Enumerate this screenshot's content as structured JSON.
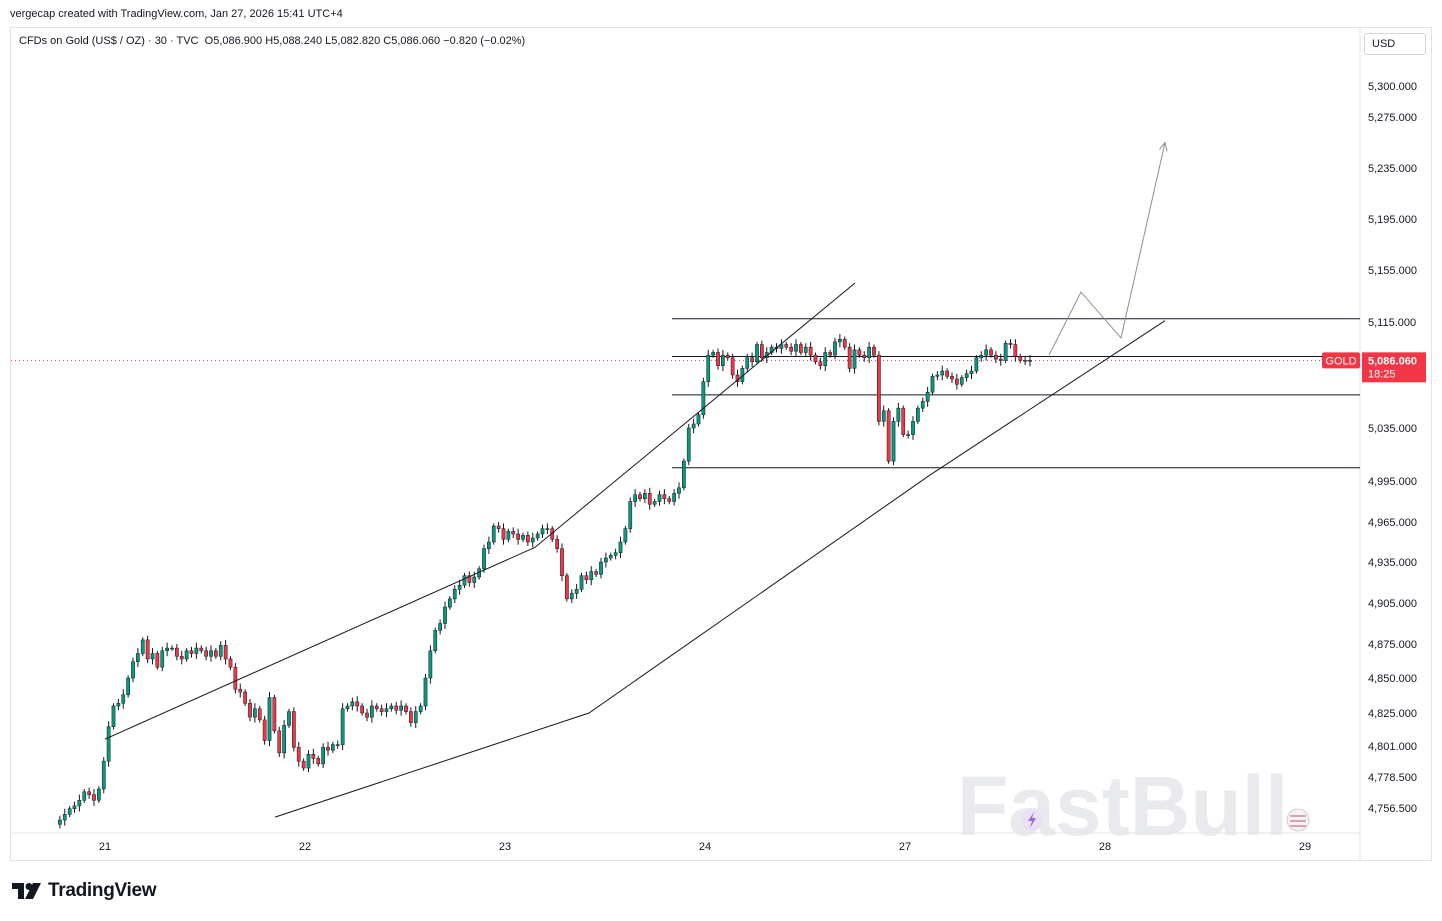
{
  "header": {
    "creator": "vergecap created with TradingView.com, Jan 27, 2026 15:41 UTC+4"
  },
  "legend": {
    "instrument": "CFDs on Gold (US$ / OZ) · 30 · TVC",
    "open": "O5,086.900",
    "high": "H5,088.240",
    "low": "L5,082.820",
    "close": "C5,086.060",
    "change": "−0.820 (−0.02%)"
  },
  "price_axis": {
    "currency": "USD"
  },
  "last_price": {
    "symbol": "GOLD",
    "price": "5,086.060",
    "countdown": "18:25"
  },
  "footer": {
    "brand": "TradingView"
  },
  "watermark": {
    "text": "FastBull"
  },
  "colors": {
    "up": "#089981",
    "down": "#f23645",
    "last_price": "#f23645",
    "drawings": "#131722",
    "projection": "#8c8f96"
  },
  "chart_data": {
    "type": "candlestick",
    "y_ticks": [
      5300,
      5275,
      5235,
      5195,
      5155,
      5115,
      5035,
      4995,
      4965,
      4935,
      4905,
      4875,
      4850,
      4825,
      4801,
      4778.5,
      4756.5
    ],
    "y_tick_labels": [
      "5,300.000",
      "5,275.000",
      "5,235.000",
      "5,195.000",
      "5,155.000",
      "5,115.000",
      "5,035.000",
      "4,995.000",
      "4,965.000",
      "4,935.000",
      "4,905.000",
      "4,875.000",
      "4,850.000",
      "4,825.000",
      "4,801.000",
      "4,778.500",
      "4,756.500"
    ],
    "x_ticks": [
      21,
      22,
      23,
      24,
      27,
      28,
      29
    ],
    "x_tick_labels": [
      "21",
      "22",
      "23",
      "24",
      "27",
      "28",
      "29"
    ],
    "ylim": [
      4745,
      5330
    ],
    "last_price": 5086.06,
    "closes": [
      4745,
      4748,
      4752,
      4756,
      4758,
      4762,
      4768,
      4766,
      4762,
      4770,
      4790,
      4815,
      4830,
      4832,
      4838,
      4850,
      4862,
      4868,
      4878,
      4864,
      4868,
      4858,
      4870,
      4872,
      4872,
      4866,
      4864,
      4870,
      4868,
      4872,
      4870,
      4866,
      4870,
      4866,
      4874,
      4864,
      4858,
      4842,
      4840,
      4832,
      4822,
      4828,
      4820,
      4805,
      4836,
      4812,
      4796,
      4816,
      4826,
      4800,
      4790,
      4785,
      4795,
      4792,
      4788,
      4800,
      4798,
      4802,
      4802,
      4828,
      4830,
      4833,
      4830,
      4825,
      4822,
      4830,
      4828,
      4826,
      4828,
      4830,
      4827,
      4830,
      4826,
      4818,
      4826,
      4830,
      4850,
      4870,
      4885,
      4890,
      4902,
      4908,
      4915,
      4918,
      4925,
      4920,
      4924,
      4930,
      4945,
      4950,
      4962,
      4960,
      4952,
      4958,
      4956,
      4952,
      4955,
      4950,
      4953,
      4956,
      4960,
      4960,
      4952,
      4945,
      4925,
      4908,
      4912,
      4915,
      4925,
      4922,
      4928,
      4926,
      4935,
      4938,
      4940,
      4942,
      4950,
      4960,
      4980,
      4985,
      4982,
      4986,
      4978,
      4980,
      4985,
      4982,
      4980,
      4986,
      4990,
      5010,
      5035,
      5038,
      5045,
      5070,
      5090,
      5092,
      5082,
      5090,
      5088,
      5075,
      5070,
      5080,
      5088,
      5085,
      5098,
      5088,
      5092,
      5096,
      5095,
      5098,
      5096,
      5093,
      5098,
      5092,
      5096,
      5090,
      5085,
      5082,
      5092,
      5090,
      5100,
      5102,
      5096,
      5080,
      5094,
      5090,
      5088,
      5096,
      5090,
      5040,
      5048,
      5010,
      5040,
      5050,
      5030,
      5030,
      5040,
      5050,
      5055,
      5062,
      5074,
      5075,
      5078,
      5074,
      5072,
      5068,
      5073,
      5076,
      5078,
      5088,
      5090,
      5094,
      5090,
      5087,
      5086,
      5099,
      5098,
      5089,
      5086,
      5085.5,
      5086.06
    ],
    "drawings": {
      "channel_upper": [
        [
          21.0,
          4806
        ],
        [
          23.15,
          4946
        ],
        [
          26.25,
          5145
        ]
      ],
      "channel_lower": [
        [
          21.85,
          4750
        ],
        [
          23.42,
          4825
        ],
        [
          27.12,
          4999
        ],
        [
          28.3,
          5116
        ]
      ],
      "horizontal_levels": [
        5117.5,
        5089,
        5060,
        5005
      ],
      "projection_path": [
        [
          27.72,
          5090
        ],
        [
          27.88,
          5138
        ],
        [
          28.08,
          5103
        ],
        [
          28.3,
          5255
        ]
      ]
    }
  }
}
